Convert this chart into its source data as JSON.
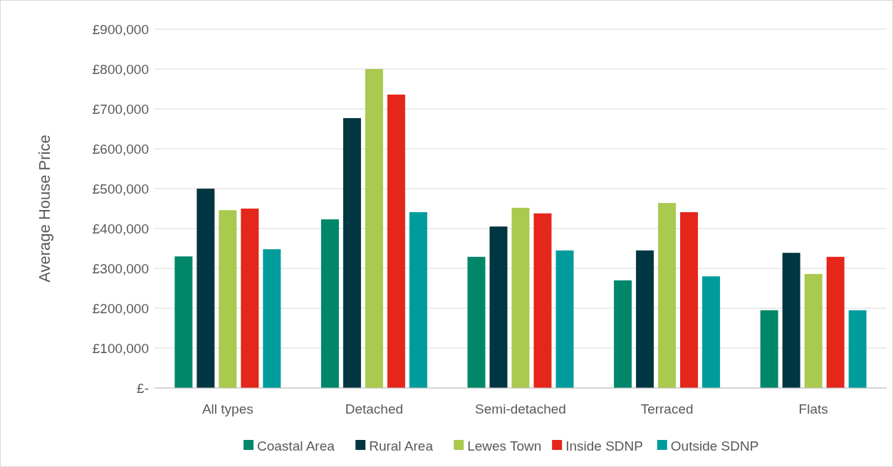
{
  "chart_data": {
    "type": "bar",
    "ylabel": "Average House Price",
    "categories": [
      "All types",
      "Detached",
      "Semi-detached",
      "Terraced",
      "Flats"
    ],
    "series": [
      {
        "name": "Coastal Area",
        "color": "#00876a",
        "values": [
          330000,
          423000,
          329000,
          270000,
          195000
        ]
      },
      {
        "name": "Rural Area",
        "color": "#003641",
        "values": [
          500000,
          677000,
          405000,
          345000,
          339000
        ]
      },
      {
        "name": "Lewes Town",
        "color": "#a9c94f",
        "values": [
          446000,
          800000,
          452000,
          464000,
          286000
        ]
      },
      {
        "name": "Inside SDNP",
        "color": "#e4261b",
        "values": [
          450000,
          736000,
          438000,
          441000,
          329000
        ]
      },
      {
        "name": "Outside SDNP",
        "color": "#009c9c",
        "values": [
          348000,
          441000,
          345000,
          280000,
          195000
        ]
      }
    ],
    "ylim": [
      0,
      900000
    ],
    "yticks": [
      {
        "value": 0,
        "label": "£-"
      },
      {
        "value": 100000,
        "label": "£100,000"
      },
      {
        "value": 200000,
        "label": "£200,000"
      },
      {
        "value": 300000,
        "label": "£300,000"
      },
      {
        "value": 400000,
        "label": "£400,000"
      },
      {
        "value": 500000,
        "label": "£500,000"
      },
      {
        "value": 600000,
        "label": "£600,000"
      },
      {
        "value": 700000,
        "label": "£700,000"
      },
      {
        "value": 800000,
        "label": "£800,000"
      },
      {
        "value": 900000,
        "label": "£900,000"
      }
    ],
    "grid": "y",
    "legend": "bottom"
  }
}
